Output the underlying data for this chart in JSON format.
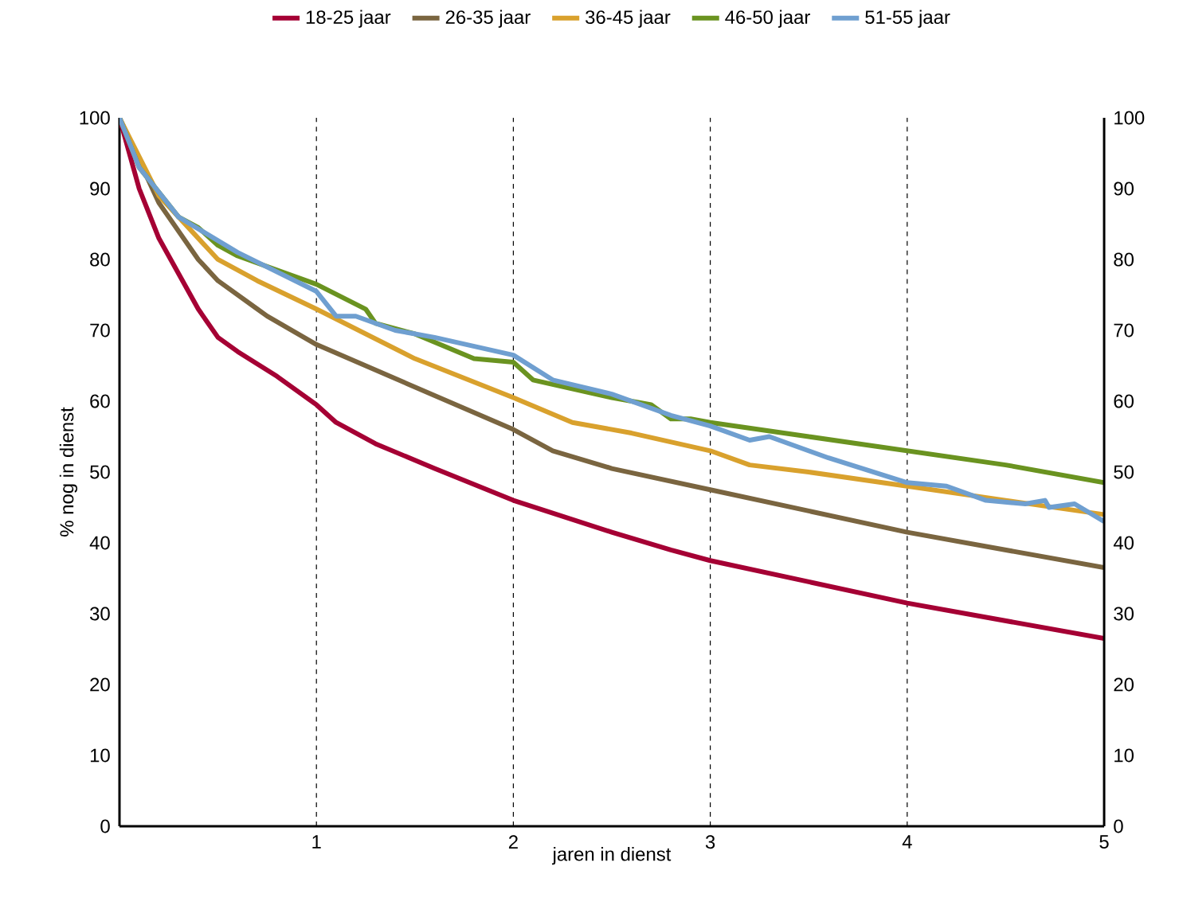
{
  "chart_data": {
    "type": "line",
    "xlabel": "jaren in dienst",
    "ylabel": "% nog in dienst",
    "xlim": [
      0,
      5
    ],
    "xticks": [
      1,
      2,
      3,
      4,
      5
    ],
    "ylim": [
      0,
      100
    ],
    "yticks": [
      0,
      10,
      20,
      30,
      40,
      50,
      60,
      70,
      80,
      90,
      100
    ],
    "y2lim": [
      0,
      100
    ],
    "y2ticks": [
      0,
      10,
      20,
      30,
      40,
      50,
      60,
      70,
      80,
      90,
      100
    ],
    "grid": "x",
    "legend": "top",
    "marker": "none",
    "line_style": "solid",
    "series": [
      {
        "name": "18-25 jaar",
        "color": "#a50034",
        "x": [
          0,
          0.1,
          0.2,
          0.3,
          0.4,
          0.5,
          0.6,
          0.8,
          1,
          1.1,
          1.3,
          1.6,
          2,
          2.5,
          2.8,
          3,
          3.5,
          4,
          4.5,
          5
        ],
        "values": [
          100,
          90,
          83,
          78,
          73,
          69,
          67,
          63.5,
          59.5,
          57,
          54,
          50.5,
          46,
          41.5,
          39,
          37.5,
          34.5,
          31.5,
          29,
          26.5
        ]
      },
      {
        "name": "26-35 jaar",
        "color": "#7a6540",
        "x": [
          0,
          0.2,
          0.4,
          0.5,
          0.7,
          0.75,
          1,
          1.5,
          2,
          2.2,
          2.5,
          3,
          3.5,
          4,
          4.5,
          5
        ],
        "values": [
          100,
          88,
          80,
          77,
          73,
          72,
          68,
          62,
          56,
          53,
          50.5,
          47.5,
          44.5,
          41.5,
          39,
          36.5
        ]
      },
      {
        "name": "36-45 jaar",
        "color": "#d9a12d",
        "x": [
          0,
          0.2,
          0.5,
          0.7,
          1,
          1.5,
          2,
          2.3,
          2.6,
          3,
          3.2,
          3.5,
          4,
          4.5,
          5
        ],
        "values": [
          100,
          89,
          80,
          77,
          73,
          66,
          60.5,
          57,
          55.5,
          53,
          51,
          50,
          48,
          46,
          44
        ]
      },
      {
        "name": "46-50 jaar",
        "color": "#6a9320",
        "x": [
          0,
          0.1,
          0.3,
          0.4,
          0.5,
          0.6,
          1,
          1.25,
          1.3,
          1.5,
          1.8,
          2,
          2.1,
          2.5,
          2.7,
          2.8,
          2.9,
          3,
          3.5,
          4,
          4.5,
          5
        ],
        "values": [
          100,
          93,
          86,
          84.5,
          82,
          80.5,
          76.5,
          73,
          71,
          69.5,
          66,
          65.5,
          63,
          60.5,
          59.5,
          57.5,
          57.5,
          57,
          55,
          53,
          51,
          48.5
        ]
      },
      {
        "name": "51-55 jaar",
        "color": "#6f9fd0",
        "x": [
          0,
          0.1,
          0.3,
          0.6,
          1,
          1.1,
          1.2,
          1.4,
          1.6,
          2,
          2.2,
          2.5,
          2.8,
          3,
          3.2,
          3.3,
          3.6,
          4,
          4.2,
          4.4,
          4.6,
          4.7,
          4.72,
          4.85,
          5
        ],
        "values": [
          100,
          93,
          86,
          81,
          75.5,
          72,
          72,
          70,
          69,
          66.5,
          63,
          61,
          58,
          56.5,
          54.5,
          55,
          52,
          48.5,
          48,
          46,
          45.5,
          46,
          45,
          45.5,
          43
        ]
      }
    ]
  }
}
